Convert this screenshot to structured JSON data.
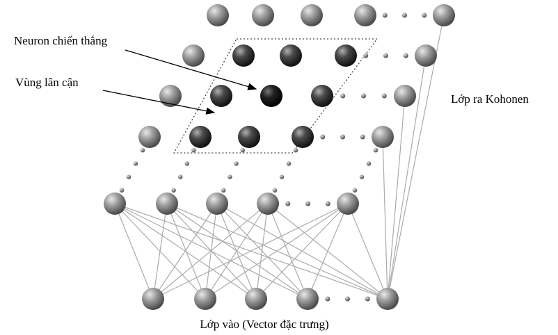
{
  "labels": {
    "winner": "Neuron chiến thắng",
    "neighborhood": "Vùng lân cận",
    "output_layer": "Lớp ra Kohonen",
    "input_layer": "Lớp vào (Vector đặc trưng)"
  }
}
